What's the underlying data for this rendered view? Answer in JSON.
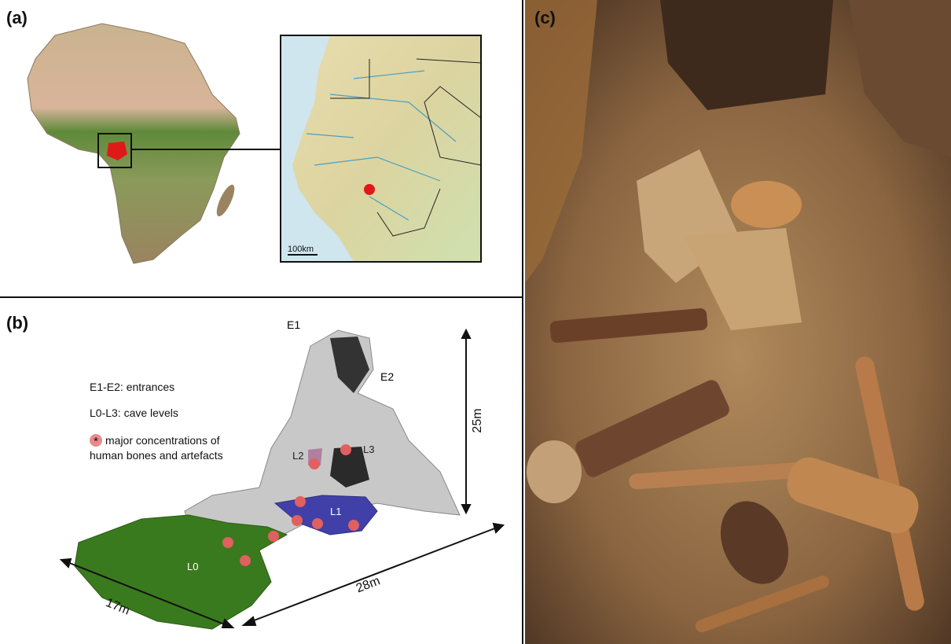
{
  "panels": {
    "a": {
      "label": "(a)",
      "scale_bar": "100km"
    },
    "b": {
      "label": "(b)",
      "entrances": [
        "E1",
        "E2"
      ],
      "legend": {
        "entrances": "E1-E2: entrances",
        "levels": "L0-L3: cave levels",
        "marker": "*",
        "concentrations": [
          "major concentrations of",
          "human bones and artefacts"
        ]
      },
      "levels": [
        "L0",
        "L1",
        "L2",
        "L3"
      ],
      "dimensions": {
        "height": "25m",
        "length": "28m",
        "width": "17m"
      }
    },
    "c": {
      "label": "(c)"
    }
  }
}
